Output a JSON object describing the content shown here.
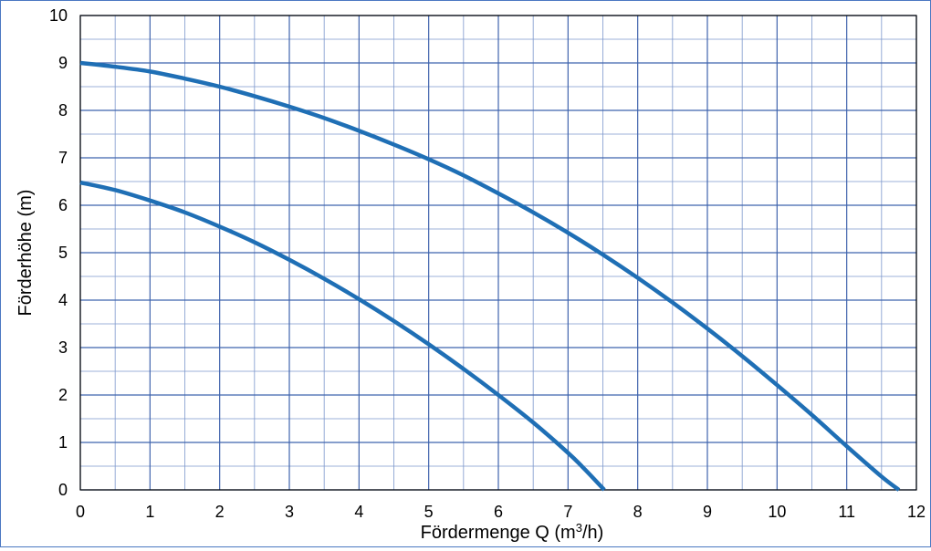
{
  "chart_data": {
    "type": "line",
    "title": "",
    "xlabel": "Fördermenge Q (m",
    "xlabel_sup": "3",
    "xlabel_suffix": "/h)",
    "ylabel": "Förderhöhe (m)",
    "xlim": [
      0,
      12
    ],
    "ylim": [
      0,
      10
    ],
    "x_ticks": [
      "0",
      "1",
      "2",
      "3",
      "4",
      "5",
      "6",
      "7",
      "8",
      "9",
      "10",
      "11",
      "12"
    ],
    "y_ticks": [
      "0",
      "1",
      "2",
      "3",
      "4",
      "5",
      "6",
      "7",
      "8",
      "9",
      "10"
    ],
    "grid": true,
    "minor_grid_x": 0.5,
    "minor_grid_y": 0.5,
    "legend": "none",
    "series": [
      {
        "color": "#1f6fb5",
        "x": [
          0,
          0.5,
          1,
          1.5,
          2,
          2.5,
          3,
          3.5,
          4,
          4.5,
          5,
          5.5,
          6,
          6.5,
          7,
          7.5,
          8,
          8.5,
          9,
          9.5,
          10,
          10.5,
          11,
          11.5,
          11.75
        ],
        "y": [
          9.0,
          8.92,
          8.82,
          8.67,
          8.5,
          8.3,
          8.08,
          7.84,
          7.57,
          7.28,
          6.97,
          6.63,
          6.25,
          5.85,
          5.42,
          4.96,
          4.47,
          3.95,
          3.4,
          2.82,
          2.21,
          1.58,
          0.92,
          0.28,
          0.0
        ]
      },
      {
        "color": "#1f6fb5",
        "x": [
          0,
          0.5,
          1,
          1.5,
          2,
          2.5,
          3,
          3.5,
          4,
          4.5,
          5,
          5.5,
          6,
          6.5,
          7,
          7.25,
          7.52
        ],
        "y": [
          6.48,
          6.32,
          6.1,
          5.85,
          5.55,
          5.22,
          4.85,
          4.45,
          4.02,
          3.56,
          3.07,
          2.55,
          2.0,
          1.42,
          0.78,
          0.42,
          0.0
        ]
      }
    ]
  }
}
